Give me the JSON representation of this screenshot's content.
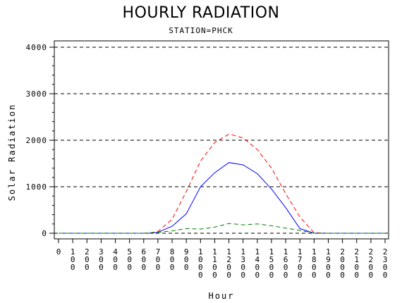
{
  "chart_data": {
    "type": "line",
    "title": "HOURLY RADIATION",
    "subtitle": "STATION=PHCK",
    "xlabel": "Hour",
    "ylabel": "Solar Radiation",
    "x": [
      0,
      100,
      200,
      300,
      400,
      500,
      600,
      700,
      800,
      900,
      1000,
      1100,
      1200,
      1300,
      1400,
      1500,
      1600,
      1700,
      1800,
      1900,
      2000,
      2100,
      2200,
      2300
    ],
    "x_tick_labels": [
      "0",
      "100",
      "200",
      "300",
      "400",
      "500",
      "600",
      "700",
      "800",
      "900",
      "1000",
      "1100",
      "1200",
      "1300",
      "1400",
      "1500",
      "1600",
      "1700",
      "1800",
      "1900",
      "2000",
      "2100",
      "2200",
      "2300"
    ],
    "ylim": [
      0,
      4000
    ],
    "y_ticks": [
      0,
      1000,
      2000,
      3000,
      4000
    ],
    "y_tick_labels": [
      "0",
      "1000",
      "2000",
      "3000",
      "4000"
    ],
    "grid": "horizontal dashed",
    "series": [
      {
        "color": "#ff0000",
        "style": "dashed",
        "points": [
          [
            0,
            0
          ],
          [
            100,
            0
          ],
          [
            200,
            0
          ],
          [
            300,
            0
          ],
          [
            400,
            0
          ],
          [
            500,
            0
          ],
          [
            600,
            0
          ],
          [
            650,
            10
          ],
          [
            700,
            40
          ],
          [
            800,
            300
          ],
          [
            900,
            900
          ],
          [
            1000,
            1550
          ],
          [
            1100,
            1950
          ],
          [
            1200,
            2130
          ],
          [
            1230,
            2110
          ],
          [
            1300,
            2050
          ],
          [
            1400,
            1800
          ],
          [
            1500,
            1400
          ],
          [
            1600,
            850
          ],
          [
            1700,
            350
          ],
          [
            1800,
            10
          ],
          [
            1900,
            0
          ],
          [
            2000,
            0
          ],
          [
            2100,
            0
          ],
          [
            2200,
            0
          ],
          [
            2300,
            0
          ]
        ]
      },
      {
        "color": "#0000ff",
        "style": "solid",
        "points": [
          [
            0,
            0
          ],
          [
            100,
            0
          ],
          [
            200,
            0
          ],
          [
            300,
            0
          ],
          [
            400,
            0
          ],
          [
            500,
            0
          ],
          [
            600,
            0
          ],
          [
            650,
            0
          ],
          [
            700,
            20
          ],
          [
            800,
            150
          ],
          [
            900,
            420
          ],
          [
            1000,
            1000
          ],
          [
            1100,
            1300
          ],
          [
            1200,
            1520
          ],
          [
            1300,
            1470
          ],
          [
            1400,
            1280
          ],
          [
            1500,
            950
          ],
          [
            1600,
            550
          ],
          [
            1700,
            100
          ],
          [
            1800,
            0
          ],
          [
            1900,
            0
          ],
          [
            2000,
            0
          ],
          [
            2100,
            0
          ],
          [
            2200,
            0
          ],
          [
            2300,
            0
          ]
        ]
      },
      {
        "color": "#008000",
        "style": "dashed",
        "points": [
          [
            0,
            0
          ],
          [
            100,
            0
          ],
          [
            200,
            0
          ],
          [
            300,
            0
          ],
          [
            400,
            0
          ],
          [
            500,
            0
          ],
          [
            600,
            0
          ],
          [
            700,
            20
          ],
          [
            800,
            50
          ],
          [
            900,
            100
          ],
          [
            1000,
            90
          ],
          [
            1100,
            130
          ],
          [
            1200,
            210
          ],
          [
            1300,
            180
          ],
          [
            1400,
            200
          ],
          [
            1500,
            160
          ],
          [
            1600,
            110
          ],
          [
            1700,
            60
          ],
          [
            1800,
            0
          ],
          [
            1900,
            0
          ],
          [
            2000,
            0
          ],
          [
            2100,
            0
          ],
          [
            2200,
            0
          ],
          [
            2300,
            0
          ]
        ]
      }
    ]
  }
}
